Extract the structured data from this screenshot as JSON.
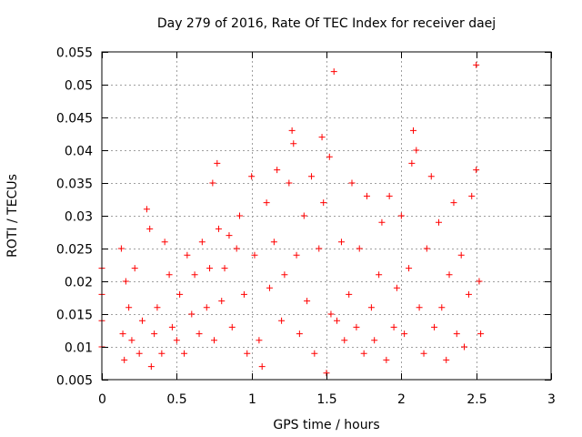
{
  "chart_data": {
    "type": "scatter",
    "title": "Day 279 of 2016, Rate Of TEC Index for receiver daej",
    "xlabel": "GPS time / hours",
    "ylabel": "ROTI / TECUs",
    "xlim": [
      0,
      3
    ],
    "ylim": [
      0.005,
      0.055
    ],
    "x_ticks": [
      0,
      0.5,
      1,
      1.5,
      2,
      2.5,
      3
    ],
    "x_tick_labels": [
      "0",
      "0.5",
      "1",
      "1.5",
      "2",
      "2.5",
      "3"
    ],
    "y_ticks": [
      0.005,
      0.01,
      0.015,
      0.02,
      0.025,
      0.03,
      0.035,
      0.04,
      0.045,
      0.05,
      0.055
    ],
    "y_tick_labels": [
      "0.005",
      "0.01",
      "0.015",
      "0.02",
      "0.025",
      "0.03",
      "0.035",
      "0.04",
      "0.045",
      "0.05",
      "0.055"
    ],
    "grid": true,
    "marker": "+",
    "series": [
      {
        "name": "ROTI",
        "color": "#ff0000",
        "x": [
          0.0,
          0.0,
          0.0,
          0.0,
          0.13,
          0.14,
          0.15,
          0.16,
          0.18,
          0.2,
          0.22,
          0.25,
          0.27,
          0.3,
          0.32,
          0.33,
          0.35,
          0.37,
          0.4,
          0.42,
          0.45,
          0.47,
          0.5,
          0.52,
          0.55,
          0.57,
          0.6,
          0.62,
          0.65,
          0.67,
          0.7,
          0.72,
          0.74,
          0.75,
          0.77,
          0.78,
          0.8,
          0.82,
          0.85,
          0.87,
          0.9,
          0.92,
          0.95,
          0.97,
          1.0,
          1.02,
          1.05,
          1.07,
          1.1,
          1.12,
          1.15,
          1.17,
          1.2,
          1.22,
          1.25,
          1.27,
          1.28,
          1.3,
          1.32,
          1.35,
          1.37,
          1.4,
          1.42,
          1.45,
          1.47,
          1.48,
          1.5,
          1.52,
          1.53,
          1.55,
          1.57,
          1.6,
          1.62,
          1.65,
          1.67,
          1.7,
          1.72,
          1.75,
          1.77,
          1.8,
          1.82,
          1.85,
          1.87,
          1.9,
          1.92,
          1.95,
          1.97,
          2.0,
          2.02,
          2.05,
          2.07,
          2.08,
          2.1,
          2.12,
          2.15,
          2.17,
          2.2,
          2.22,
          2.25,
          2.27,
          2.3,
          2.32,
          2.35,
          2.37,
          2.4,
          2.42,
          2.45,
          2.47,
          2.5,
          2.5,
          2.52,
          2.53
        ],
        "y": [
          0.022,
          0.018,
          0.014,
          0.01,
          0.025,
          0.012,
          0.008,
          0.02,
          0.016,
          0.011,
          0.022,
          0.009,
          0.014,
          0.031,
          0.028,
          0.007,
          0.012,
          0.016,
          0.009,
          0.026,
          0.021,
          0.013,
          0.011,
          0.018,
          0.009,
          0.024,
          0.015,
          0.021,
          0.012,
          0.026,
          0.016,
          0.022,
          0.035,
          0.011,
          0.038,
          0.028,
          0.017,
          0.022,
          0.027,
          0.013,
          0.025,
          0.03,
          0.018,
          0.009,
          0.036,
          0.024,
          0.011,
          0.007,
          0.032,
          0.019,
          0.026,
          0.037,
          0.014,
          0.021,
          0.035,
          0.043,
          0.041,
          0.024,
          0.012,
          0.03,
          0.017,
          0.036,
          0.009,
          0.025,
          0.042,
          0.032,
          0.006,
          0.039,
          0.015,
          0.052,
          0.014,
          0.026,
          0.011,
          0.018,
          0.035,
          0.013,
          0.025,
          0.009,
          0.033,
          0.016,
          0.011,
          0.021,
          0.029,
          0.008,
          0.033,
          0.013,
          0.019,
          0.03,
          0.012,
          0.022,
          0.038,
          0.043,
          0.04,
          0.016,
          0.009,
          0.025,
          0.036,
          0.013,
          0.029,
          0.016,
          0.008,
          0.021,
          0.032,
          0.012,
          0.024,
          0.01,
          0.018,
          0.033,
          0.053,
          0.037,
          0.02,
          0.012
        ]
      }
    ]
  }
}
